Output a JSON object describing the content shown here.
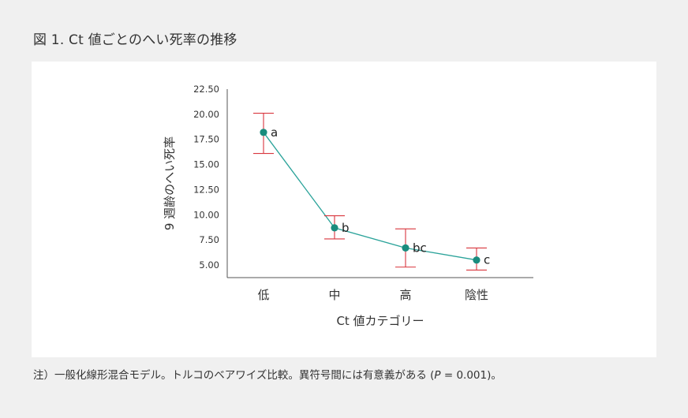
{
  "figure_title": "図 1. Ct 値ごとのへい死率の推移",
  "footnote": {
    "text": "注）一般化線形混合モデル。トルコのベアワイズ比較。異符号間には有意義がある (",
    "p_symbol": "P",
    "p_value": " = 0.001)。"
  },
  "colors": {
    "line": "#2ba39a",
    "point": "#1a8c7e",
    "error_bar": "#d9363e",
    "axis": "#555555",
    "panel": "#ffffff",
    "background": "#f0f0f0"
  },
  "chart_data": {
    "type": "line",
    "title": "",
    "xlabel": "Ct 値カテゴリー",
    "ylabel": "9 週齢のへい死率",
    "categories": [
      "低",
      "中",
      "高",
      "陰性"
    ],
    "values": [
      18.2,
      8.7,
      6.7,
      5.5
    ],
    "error_low": [
      16.1,
      7.6,
      4.8,
      4.5
    ],
    "error_high": [
      20.1,
      9.9,
      8.6,
      6.7
    ],
    "point_labels": [
      "a",
      "b",
      "bc",
      "c"
    ],
    "yticks": [
      "22.50",
      "20.00",
      "17.50",
      "15.00",
      "12.50",
      "10.00",
      "7.50",
      "5.00"
    ],
    "ylim": [
      3.75,
      22.5
    ],
    "grid": false,
    "legend": false
  }
}
